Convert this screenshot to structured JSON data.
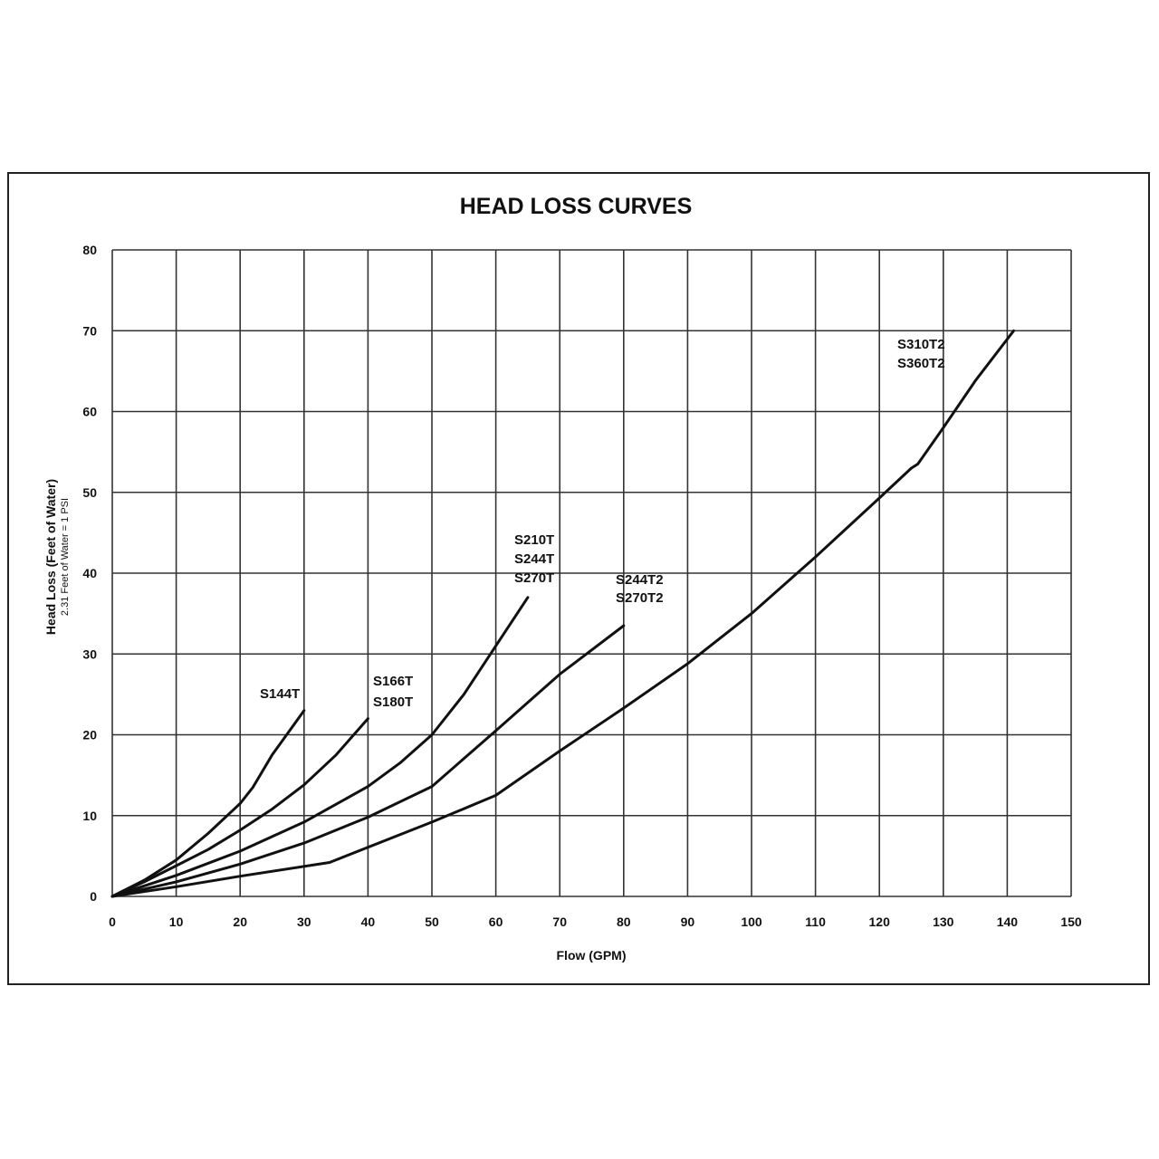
{
  "chart_data": {
    "type": "line",
    "title": "HEAD LOSS CURVES",
    "xlabel": "Flow (GPM)",
    "ylabel": "Head Loss (Feet of Water)",
    "ylabel_sub": "2.31 Feet of Water = 1 PSI",
    "xlim": [
      0,
      150
    ],
    "ylim": [
      0,
      80
    ],
    "x_ticks": [
      0,
      10,
      20,
      30,
      40,
      50,
      60,
      70,
      80,
      90,
      100,
      110,
      120,
      130,
      140,
      150
    ],
    "y_ticks": [
      0,
      10,
      20,
      30,
      40,
      50,
      60,
      70,
      80
    ],
    "grid": true,
    "legend": "inline labels",
    "series": [
      {
        "name": "S144T",
        "label_lines": [
          "S144T"
        ],
        "x": [
          0,
          5,
          10,
          15,
          20,
          22,
          25,
          28,
          30
        ],
        "y": [
          0,
          2,
          4.5,
          7.8,
          11.5,
          13.5,
          17.5,
          20.8,
          23
        ]
      },
      {
        "name": "S166T S180T",
        "label_lines": [
          "S166T",
          "S180T"
        ],
        "x": [
          0,
          5,
          10,
          15,
          20,
          25,
          30,
          35,
          40
        ],
        "y": [
          0,
          1.8,
          3.8,
          5.8,
          8.2,
          10.8,
          13.8,
          17.5,
          22
        ]
      },
      {
        "name": "S210T S244T S270T",
        "label_lines": [
          "S210T",
          "S244T",
          "S270T"
        ],
        "x": [
          0,
          10,
          20,
          30,
          40,
          45,
          50,
          55,
          60,
          65
        ],
        "y": [
          0,
          2.6,
          5.6,
          9.2,
          13.6,
          16.5,
          20,
          25,
          31,
          37
        ]
      },
      {
        "name": "S244T2 S270T2",
        "label_lines": [
          "S244T2",
          "S270T2"
        ],
        "x": [
          0,
          10,
          20,
          30,
          40,
          50,
          60,
          70,
          80
        ],
        "y": [
          0,
          1.8,
          4,
          6.6,
          9.8,
          13.6,
          20.5,
          27.5,
          33.5
        ]
      },
      {
        "name": "S310T2 S360T2",
        "label_lines": [
          "S310T2",
          "S360T2"
        ],
        "x": [
          0,
          10,
          20,
          34,
          50,
          60,
          70,
          80,
          90,
          100,
          110,
          120,
          125,
          126,
          130,
          135,
          141
        ],
        "y": [
          0,
          1.2,
          2.5,
          4.2,
          9.2,
          12.5,
          18,
          23.3,
          28.8,
          35,
          42,
          49.3,
          53,
          53.5,
          58,
          63.8,
          70
        ]
      }
    ]
  }
}
